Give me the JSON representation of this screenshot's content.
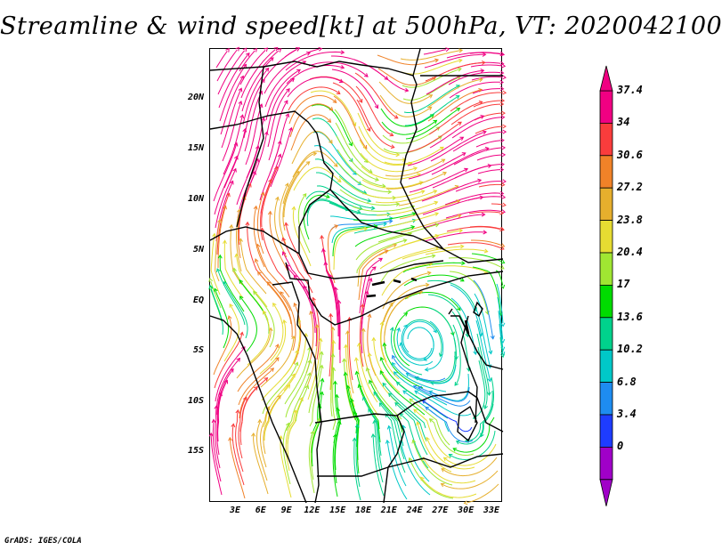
{
  "title": "Streamline & wind speed[kt] at 500hPa, VT: 2020042100",
  "footer": "GrADS: IGES/COLA",
  "map": {
    "lat_ticks": [
      "20N",
      "15N",
      "10N",
      "5N",
      "EQ",
      "5S",
      "10S",
      "15S"
    ],
    "lon_ticks": [
      "3E",
      "6E",
      "9E",
      "12E",
      "15E",
      "18E",
      "21E",
      "24E",
      "27E",
      "30E",
      "33E"
    ]
  },
  "colorbar": {
    "labels": [
      "37.4",
      "34",
      "30.6",
      "27.2",
      "23.8",
      "20.4",
      "17",
      "13.6",
      "10.2",
      "6.8",
      "3.4",
      "0"
    ],
    "colors": [
      "#f00082",
      "#fa3c3c",
      "#f08228",
      "#e6af2d",
      "#e6dc32",
      "#a0e632",
      "#00dc00",
      "#00d28c",
      "#00c8c8",
      "#1e8cf0",
      "#1e3cff",
      "#a000c8"
    ]
  }
}
